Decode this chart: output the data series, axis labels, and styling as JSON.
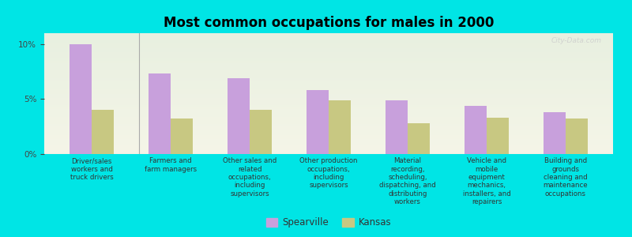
{
  "title": "Most common occupations for males in 2000",
  "categories": [
    "Driver/sales\nworkers and\ntruck drivers",
    "Farmers and\nfarm managers",
    "Other sales and\nrelated\noccupations,\nincluding\nsupervisors",
    "Other production\noccupations,\nincluding\nsupervisors",
    "Material\nrecording,\nscheduling,\ndispatching, and\ndistributing\nworkers",
    "Vehicle and\nmobile\nequipment\nmechanics,\ninstallers, and\nrepairers",
    "Building and\ngrounds\ncleaning and\nmaintenance\noccupations"
  ],
  "spearville": [
    10.0,
    7.3,
    6.9,
    5.8,
    4.9,
    4.4,
    3.8
  ],
  "kansas": [
    4.0,
    3.2,
    4.0,
    4.9,
    2.8,
    3.3,
    3.2
  ],
  "spearville_color": "#c8a0dc",
  "kansas_color": "#c8c882",
  "background_color": "#00e5e5",
  "plot_bg_top": "#f5f5e8",
  "plot_bg_bottom": "#e8f0e0",
  "yticks": [
    0,
    5,
    10
  ],
  "ylim": [
    0,
    11
  ],
  "bar_width": 0.28,
  "legend_labels": [
    "Spearville",
    "Kansas"
  ],
  "watermark": "City-Data.com"
}
